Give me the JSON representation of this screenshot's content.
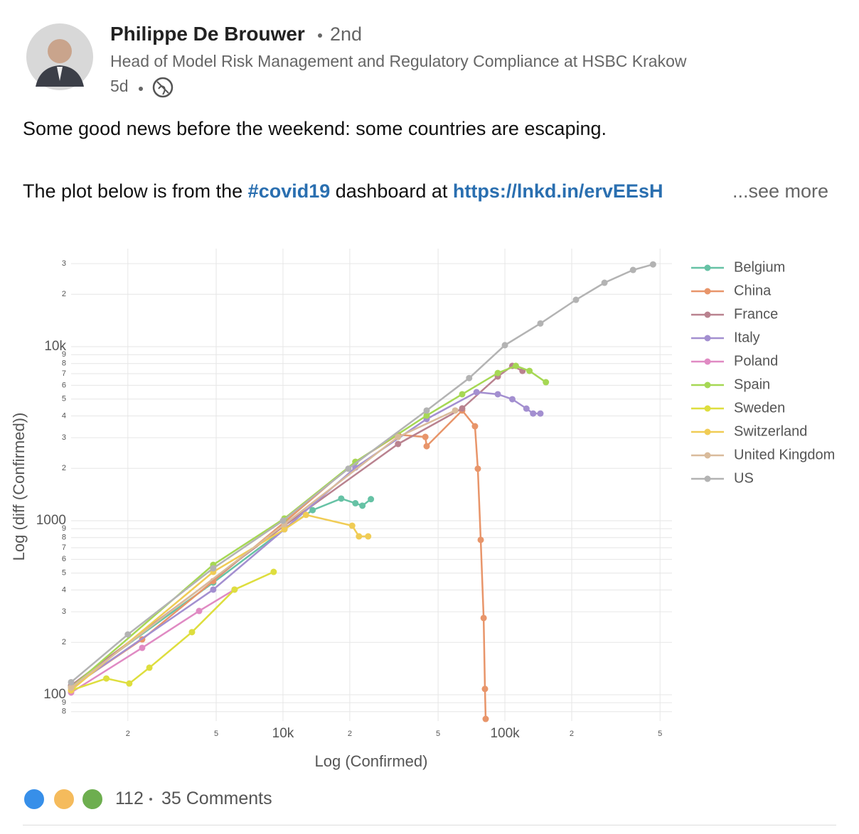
{
  "post": {
    "author": "Philippe De Brouwer",
    "degree": "2nd",
    "headline": "Head of Model Risk Management and Regulatory Compliance at HSBC Krakow",
    "age": "5d",
    "line1": "Some good news before the weekend: some countries are escaping.",
    "line2_start": "The plot below is from the",
    "hashtag": "#covid19",
    "line2_mid": "dashboard at",
    "link": "https://lnkd.in/ervEEsH",
    "see_more": "...see more",
    "reactions": "112",
    "comments": "35 Comments"
  },
  "chart_data": {
    "type": "line",
    "xscale": "log",
    "yscale": "log",
    "x_label": "Log (Confirmed)",
    "y_label": "Log (diff (Confirmed))",
    "xlim": [
      1110,
      566000
    ],
    "ylim": [
      70.6,
      36600
    ],
    "grid": true,
    "legend": "right",
    "xticks": [
      {
        "value": 2000,
        "label": "2"
      },
      {
        "value": 5000,
        "label": "5"
      },
      {
        "value": 10000,
        "label": "10k"
      },
      {
        "value": 20000,
        "label": "2"
      },
      {
        "value": 50000,
        "label": "5"
      },
      {
        "value": 100000,
        "label": "100k"
      },
      {
        "value": 200000,
        "label": "2"
      },
      {
        "value": 500000,
        "label": "5"
      }
    ],
    "yticks": [
      {
        "value": 80,
        "label": "8"
      },
      {
        "value": 90,
        "label": "9"
      },
      100,
      {
        "value": 200,
        "label": "2"
      },
      {
        "value": 300,
        "label": "3"
      },
      {
        "value": 400,
        "label": "4"
      },
      {
        "value": 500,
        "label": "5"
      },
      {
        "value": 600,
        "label": "6"
      },
      {
        "value": 700,
        "label": "7"
      },
      {
        "value": 800,
        "label": "8"
      },
      {
        "value": 900,
        "label": "9"
      },
      1000,
      {
        "value": 2000,
        "label": "2"
      },
      {
        "value": 3000,
        "label": "3"
      },
      {
        "value": 4000,
        "label": "4"
      },
      {
        "value": 5000,
        "label": "5"
      },
      {
        "value": 6000,
        "label": "6"
      },
      {
        "value": 7000,
        "label": "7"
      },
      {
        "value": 8000,
        "label": "8"
      },
      {
        "value": 9000,
        "label": "9"
      },
      {
        "value": 10000,
        "label": "10k"
      },
      {
        "value": 20000,
        "label": "2"
      },
      {
        "value": 30000,
        "label": "3"
      }
    ],
    "series": [
      {
        "name": "Belgium",
        "color": "#66c2a5",
        "x": [
          1110,
          4850,
          10150,
          13600,
          18300,
          21200,
          22800,
          24900
        ],
        "values": [
          113,
          441,
          893,
          1150,
          1340,
          1260,
          1220,
          1330
        ]
      },
      {
        "name": "China",
        "color": "#e8956a",
        "x": [
          1110,
          2320,
          4850,
          10150,
          21200,
          33000,
          43800,
          44400,
          64200,
          73300,
          75500,
          77800,
          80200,
          81300,
          81900
        ],
        "values": [
          110,
          208,
          450,
          980,
          2180,
          3120,
          3030,
          2680,
          4300,
          3490,
          1990,
          776,
          276,
          108,
          72.6
        ]
      },
      {
        "name": "France",
        "color": "#b9828f",
        "x": [
          1110,
          10150,
          33000,
          64200,
          92900,
          108000,
          120000
        ],
        "values": [
          113,
          937,
          2760,
          4420,
          6740,
          7760,
          7260
        ]
      },
      {
        "name": "Italy",
        "color": "#a38fd0",
        "x": [
          1110,
          4850,
          10150,
          21200,
          44400,
          74500,
          92900,
          108000,
          125000,
          134000,
          144500
        ],
        "values": [
          110,
          402,
          893,
          2020,
          3840,
          5480,
          5330,
          4990,
          4410,
          4130,
          4130
        ]
      },
      {
        "name": "Poland",
        "color": "#e08ac3",
        "x": [
          1110,
          2320,
          4190,
          6050
        ],
        "values": [
          103,
          186,
          303,
          402
        ]
      },
      {
        "name": "Spain",
        "color": "#a6d854",
        "x": [
          1110,
          4850,
          10150,
          21200,
          44400,
          64200,
          92900,
          112000,
          129000,
          153000
        ],
        "values": [
          110,
          558,
          1030,
          2180,
          4020,
          5330,
          7060,
          7760,
          7260,
          6250
        ]
      },
      {
        "name": "Sweden",
        "color": "#dede3e",
        "x": [
          1110,
          1600,
          2030,
          2500,
          3890,
          6050,
          9080
        ],
        "values": [
          106,
          124,
          116,
          143,
          229,
          402,
          508
        ]
      },
      {
        "name": "Switzerland",
        "color": "#f0cc55",
        "x": [
          1110,
          4850,
          10150,
          12700,
          20500,
          22000,
          24200
        ],
        "values": [
          106,
          508,
          893,
          1080,
          936,
          813,
          813
        ]
      },
      {
        "name": "United Kingdom",
        "color": "#d9bb9b",
        "x": [
          1110,
          10150,
          33000,
          59700
        ],
        "values": [
          110,
          954,
          3030,
          4300
        ]
      },
      {
        "name": "US",
        "color": "#b3b3b3",
        "x": [
          1110,
          2000,
          4850,
          10000,
          19700,
          44400,
          69000,
          100000,
          144500,
          209000,
          281000,
          378000,
          465000
        ],
        "values": [
          118,
          222,
          533,
          1000,
          1990,
          4300,
          6600,
          10200,
          13600,
          18600,
          23300,
          27600,
          29700
        ]
      }
    ]
  }
}
